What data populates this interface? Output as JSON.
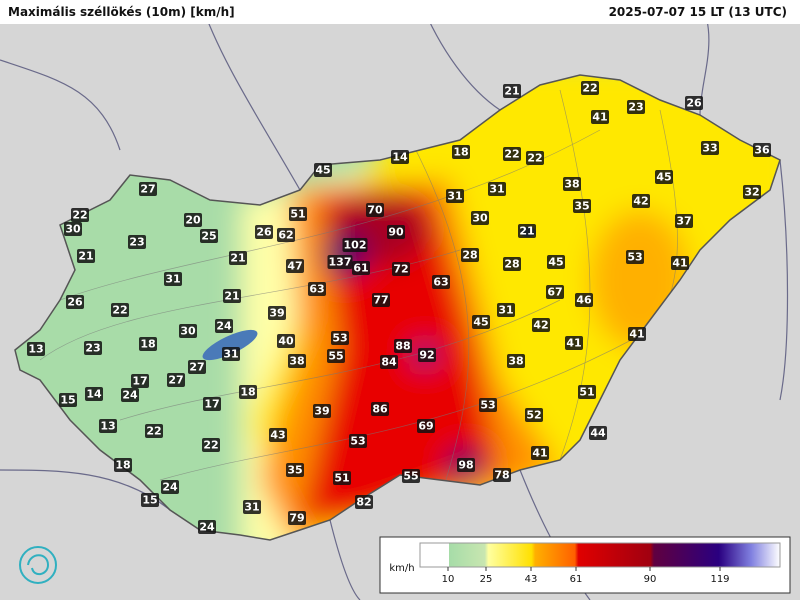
{
  "header": {
    "title": "Maximális széllökés (10m) [km/h]",
    "timestamp": "2025-07-07 15 LT (13 UTC)"
  },
  "stations": [
    21,
    22,
    23,
    26,
    41,
    33,
    36,
    14,
    18,
    22,
    22,
    45,
    38,
    45,
    32,
    27,
    31,
    31,
    35,
    42,
    70,
    51,
    22,
    30,
    20,
    25,
    26,
    62,
    90,
    30,
    21,
    37,
    23,
    102,
    28,
    21,
    21,
    47,
    137,
    61,
    72,
    28,
    45,
    53,
    41,
    31,
    63,
    63,
    21,
    67,
    46,
    26,
    22,
    77,
    39,
    31,
    45,
    42,
    30,
    24,
    41,
    53,
    40,
    41,
    13,
    23,
    18,
    31,
    88,
    92,
    55,
    38,
    38,
    84,
    17,
    27,
    27,
    24,
    14,
    15,
    18,
    51,
    17,
    39,
    86,
    53,
    52,
    13,
    22,
    69,
    43,
    44,
    53,
    22,
    41,
    18,
    98,
    78,
    35,
    51,
    55,
    24,
    15,
    82,
    31,
    79,
    24
  ],
  "legend": {
    "unit": "km/h",
    "ticks": [
      10,
      25,
      43,
      61,
      90,
      119
    ]
  }
}
